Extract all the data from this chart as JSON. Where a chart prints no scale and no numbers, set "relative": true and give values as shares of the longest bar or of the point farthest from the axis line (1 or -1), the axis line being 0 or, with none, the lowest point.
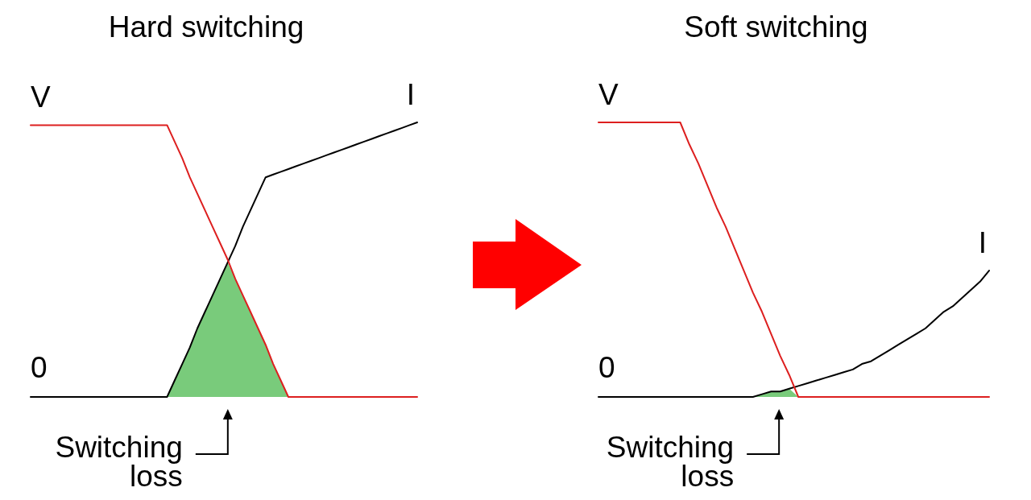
{
  "chart_data": [
    {
      "type": "line",
      "title": "Hard switching",
      "relative": true,
      "marker": "none",
      "categories": [
        null,
        null,
        null,
        null,
        null,
        null,
        null,
        null,
        null,
        null,
        null,
        null,
        null,
        null,
        null,
        null,
        null,
        null,
        null,
        null,
        null,
        null,
        null,
        null,
        null,
        null,
        null,
        null,
        null,
        null,
        null,
        null,
        null,
        null,
        null,
        null,
        null,
        null,
        null,
        null,
        null,
        null,
        null,
        null,
        null,
        null,
        null,
        null,
        null,
        null,
        null,
        null
      ],
      "series": [
        {
          "name": "V",
          "color": "#dd1f1f",
          "values": [
            0.99,
            0.99,
            0.99,
            0.99,
            0.99,
            0.99,
            0.99,
            0.99,
            0.99,
            0.99,
            0.99,
            0.99,
            0.99,
            0.99,
            0.99,
            0.99,
            0.99,
            0.99,
            0.99,
            0.93,
            0.87,
            0.8,
            0.74,
            0.68,
            0.62,
            0.56,
            0.5,
            0.43,
            0.37,
            0.31,
            0.25,
            0.19,
            0.12,
            0.06,
            0,
            0,
            0,
            0,
            0,
            0,
            0,
            0,
            0,
            0,
            0,
            0,
            0,
            0,
            0,
            0,
            0,
            0
          ]
        },
        {
          "name": "I",
          "color": "#000000",
          "values": [
            0,
            0,
            0,
            0,
            0,
            0,
            0,
            0,
            0,
            0,
            0,
            0,
            0,
            0,
            0,
            0,
            0,
            0,
            0,
            0.06,
            0.12,
            0.18,
            0.25,
            0.31,
            0.37,
            0.43,
            0.49,
            0.55,
            0.62,
            0.68,
            0.74,
            0.8,
            0.81,
            0.82,
            0.83,
            0.84,
            0.85,
            0.86,
            0.87,
            0.88,
            0.89,
            0.9,
            0.91,
            0.92,
            0.93,
            0.94,
            0.95,
            0.96,
            0.97,
            0.98,
            0.99,
            1
          ]
        },
        {
          "type": "area",
          "color": "#79cb7b",
          "values": [
            null,
            null,
            null,
            null,
            null,
            null,
            null,
            null,
            null,
            null,
            null,
            null,
            null,
            null,
            null,
            null,
            null,
            null,
            0,
            0.06,
            0.12,
            0.18,
            0.25,
            0.31,
            0.37,
            0.43,
            0.49,
            0.43,
            0.37,
            0.31,
            0.25,
            0.19,
            0.12,
            0.06,
            0,
            null,
            null,
            null,
            null,
            null,
            null,
            null,
            null,
            null,
            null,
            null,
            null,
            null,
            null,
            null,
            null,
            null
          ]
        }
      ],
      "annotations": [
        {
          "text": "0",
          "y": 0
        },
        "Switching loss"
      ]
    },
    {
      "type": "line",
      "title": "Soft switching",
      "relative": true,
      "marker": "none",
      "categories": [
        null,
        null,
        null,
        null,
        null,
        null,
        null,
        null,
        null,
        null,
        null,
        null,
        null,
        null,
        null,
        null,
        null,
        null,
        null,
        null,
        null,
        null,
        null,
        null,
        null,
        null,
        null,
        null,
        null,
        null,
        null,
        null,
        null,
        null,
        null,
        null,
        null,
        null,
        null,
        null,
        null,
        null,
        null,
        null
      ],
      "series": [
        {
          "name": "V",
          "color": "#dd1f1f",
          "values": [
            1,
            1,
            1,
            1,
            1,
            1,
            1,
            1,
            1,
            1,
            0.92,
            0.85,
            0.77,
            0.69,
            0.62,
            0.54,
            0.46,
            0.38,
            0.31,
            0.23,
            0.15,
            0.08,
            0,
            0,
            0,
            0,
            0,
            0,
            0,
            0,
            0,
            0,
            0,
            0,
            0,
            0,
            0,
            0,
            0,
            0,
            0,
            0,
            0,
            0
          ]
        },
        {
          "name": "I",
          "color": "#000000",
          "values": [
            0,
            0,
            0,
            0,
            0,
            0,
            0,
            0,
            0,
            0,
            0,
            0,
            0,
            0,
            0,
            0,
            0,
            0,
            0.01,
            0.02,
            0.02,
            0.03,
            0.04,
            0.05,
            0.06,
            0.07,
            0.08,
            0.09,
            0.1,
            0.12,
            0.13,
            0.15,
            0.17,
            0.19,
            0.21,
            0.23,
            0.25,
            0.28,
            0.31,
            0.33,
            0.36,
            0.39,
            0.42,
            0.46
          ]
        },
        {
          "type": "area",
          "color": "#79cb7b",
          "values": [
            null,
            null,
            null,
            null,
            null,
            null,
            null,
            null,
            null,
            null,
            null,
            null,
            null,
            null,
            null,
            null,
            null,
            0,
            0.01,
            0.02,
            0.02,
            0.03,
            0,
            null,
            null,
            null,
            null,
            null,
            null,
            null,
            null,
            null,
            null,
            null,
            null,
            null,
            null,
            null,
            null,
            null,
            null,
            null,
            null,
            null
          ]
        }
      ],
      "annotations": [
        {
          "text": "0",
          "y": 0
        },
        "Switching loss"
      ]
    }
  ]
}
